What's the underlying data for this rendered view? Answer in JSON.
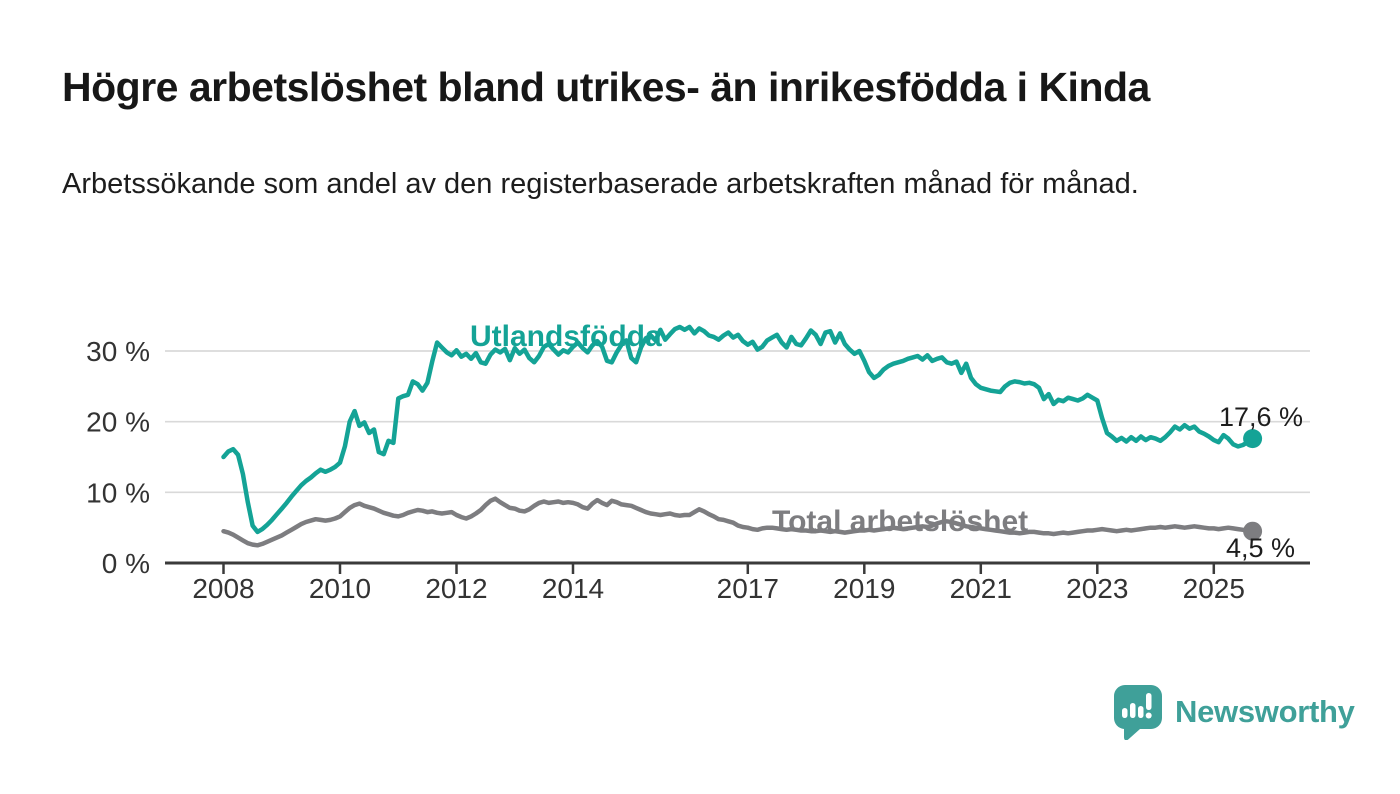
{
  "header": {
    "title": "Högre arbetslöshet bland utrikes- än inrikesfödda i Kinda",
    "subtitle": "Arbetssökande som andel av den registerbaserade arbetskraften månad för månad."
  },
  "colors": {
    "teal": "#14A396",
    "gray": "#7D7D80",
    "axis": "#3a3a3a",
    "axis_text": "#333333",
    "grid": "#d9d9d9",
    "brand_teal": "#3FA099"
  },
  "footer": {
    "brand": "Newsworthy"
  },
  "chart_data": {
    "type": "line",
    "x_unit": "monthly, decimal years",
    "start_year": 2008,
    "end_point": "2025-09",
    "x_ticks": [
      2008,
      2010,
      2012,
      2014,
      2017,
      2019,
      2021,
      2023,
      2025
    ],
    "y_ticks": [
      0,
      10,
      20,
      30
    ],
    "y_tick_suffix": " %",
    "ylim": [
      0,
      35
    ],
    "grid": true,
    "legend_position": "inline-labels",
    "series": [
      {
        "id": "utlandsfodda",
        "name": "Utlandsfödda",
        "color": "#14A396",
        "end_label": "17,6 %",
        "end_value": 17.6,
        "values": [
          15.0,
          15.8,
          16.1,
          15.3,
          12.6,
          8.6,
          5.3,
          4.4,
          4.8,
          5.4,
          6.1,
          6.9,
          7.7,
          8.5,
          9.4,
          10.2,
          11.0,
          11.6,
          12.1,
          12.7,
          13.2,
          12.9,
          13.2,
          13.6,
          14.2,
          16.5,
          20.0,
          21.5,
          19.4,
          19.9,
          18.4,
          18.9,
          15.7,
          15.4,
          17.3,
          17.0,
          23.3,
          23.6,
          23.8,
          25.7,
          25.3,
          24.4,
          25.5,
          28.5,
          31.2,
          30.5,
          29.8,
          29.4,
          30.1,
          29.2,
          29.6,
          28.9,
          29.7,
          28.4,
          28.2,
          29.5,
          30.2,
          29.8,
          30.3,
          28.7,
          30.4,
          29.6,
          30.2,
          29.0,
          28.4,
          29.3,
          30.6,
          31.0,
          30.2,
          29.5,
          30.1,
          29.8,
          30.6,
          31.2,
          30.4,
          29.8,
          30.8,
          31.4,
          30.6,
          28.6,
          28.4,
          29.8,
          30.9,
          31.5,
          29.0,
          28.4,
          30.5,
          31.8,
          32.2,
          31.5,
          33.0,
          31.6,
          32.4,
          33.1,
          33.4,
          33.0,
          33.4,
          32.5,
          33.2,
          32.8,
          32.2,
          32.0,
          31.6,
          32.2,
          32.6,
          31.9,
          32.3,
          31.4,
          30.9,
          31.3,
          30.2,
          30.6,
          31.5,
          31.9,
          32.3,
          31.2,
          30.5,
          32.0,
          31.0,
          30.8,
          31.8,
          32.9,
          32.3,
          31.0,
          32.6,
          32.8,
          31.2,
          32.5,
          31.0,
          30.2,
          29.6,
          30.0,
          28.6,
          27.0,
          26.2,
          26.6,
          27.4,
          27.9,
          28.2,
          28.4,
          28.6,
          28.9,
          29.1,
          29.3,
          28.8,
          29.4,
          28.6,
          28.9,
          29.1,
          28.4,
          28.2,
          28.5,
          26.9,
          28.2,
          26.2,
          25.3,
          24.8,
          24.6,
          24.4,
          24.3,
          24.2,
          25.0,
          25.5,
          25.7,
          25.6,
          25.4,
          25.5,
          25.3,
          24.8,
          23.2,
          23.9,
          22.5,
          23.1,
          22.9,
          23.4,
          23.2,
          23.0,
          23.3,
          23.8,
          23.4,
          23.0,
          20.5,
          18.4,
          17.9,
          17.3,
          17.7,
          17.2,
          17.8,
          17.3,
          17.9,
          17.4,
          17.8,
          17.6,
          17.3,
          17.8,
          18.5,
          19.3,
          18.9,
          19.5,
          19.0,
          19.3,
          18.6,
          18.3,
          17.9,
          17.4,
          17.1,
          18.1,
          17.6,
          16.8,
          16.5,
          16.7,
          17.1,
          17.6
        ]
      },
      {
        "id": "total",
        "name": "Total arbetslöshet",
        "color": "#7D7D80",
        "end_label": "4,5 %",
        "end_value": 4.5,
        "values": [
          4.5,
          4.3,
          4.0,
          3.6,
          3.2,
          2.8,
          2.6,
          2.5,
          2.7,
          3.0,
          3.3,
          3.6,
          3.9,
          4.3,
          4.7,
          5.1,
          5.5,
          5.8,
          6.0,
          6.2,
          6.1,
          6.0,
          6.1,
          6.3,
          6.6,
          7.2,
          7.8,
          8.2,
          8.4,
          8.1,
          7.9,
          7.7,
          7.4,
          7.1,
          6.9,
          6.7,
          6.6,
          6.8,
          7.1,
          7.3,
          7.5,
          7.4,
          7.2,
          7.3,
          7.1,
          7.0,
          7.1,
          7.2,
          6.8,
          6.5,
          6.3,
          6.6,
          7.0,
          7.5,
          8.2,
          8.8,
          9.1,
          8.6,
          8.2,
          7.8,
          7.7,
          7.4,
          7.3,
          7.6,
          8.1,
          8.5,
          8.7,
          8.5,
          8.6,
          8.7,
          8.5,
          8.6,
          8.5,
          8.3,
          7.9,
          7.7,
          8.4,
          8.9,
          8.5,
          8.2,
          8.8,
          8.6,
          8.3,
          8.2,
          8.1,
          7.8,
          7.5,
          7.2,
          7.0,
          6.9,
          6.8,
          6.9,
          7.0,
          6.8,
          6.7,
          6.8,
          6.8,
          7.2,
          7.6,
          7.3,
          6.9,
          6.6,
          6.2,
          6.1,
          5.9,
          5.7,
          5.3,
          5.1,
          5.0,
          4.8,
          4.7,
          4.9,
          5.0,
          5.0,
          4.9,
          4.8,
          4.7,
          4.8,
          4.7,
          4.6,
          4.6,
          4.5,
          4.5,
          4.6,
          4.5,
          4.4,
          4.5,
          4.4,
          4.3,
          4.4,
          4.5,
          4.6,
          4.6,
          4.7,
          4.6,
          4.7,
          4.8,
          4.9,
          5.0,
          4.9,
          4.8,
          4.9,
          5.0,
          5.1,
          5.2,
          5.1,
          5.3,
          5.6,
          5.8,
          5.9,
          5.8,
          5.6,
          5.4,
          5.2,
          5.1,
          5.0,
          4.9,
          4.8,
          4.7,
          4.6,
          4.5,
          4.4,
          4.3,
          4.3,
          4.2,
          4.3,
          4.4,
          4.4,
          4.3,
          4.2,
          4.2,
          4.1,
          4.2,
          4.3,
          4.2,
          4.3,
          4.4,
          4.5,
          4.6,
          4.6,
          4.7,
          4.8,
          4.7,
          4.6,
          4.5,
          4.6,
          4.7,
          4.6,
          4.7,
          4.8,
          4.9,
          5.0,
          5.0,
          5.1,
          5.0,
          5.1,
          5.2,
          5.1,
          5.0,
          5.1,
          5.2,
          5.1,
          5.0,
          4.9,
          4.9,
          4.8,
          4.9,
          5.0,
          4.9,
          4.8,
          4.7,
          4.6,
          4.5
        ]
      }
    ]
  }
}
